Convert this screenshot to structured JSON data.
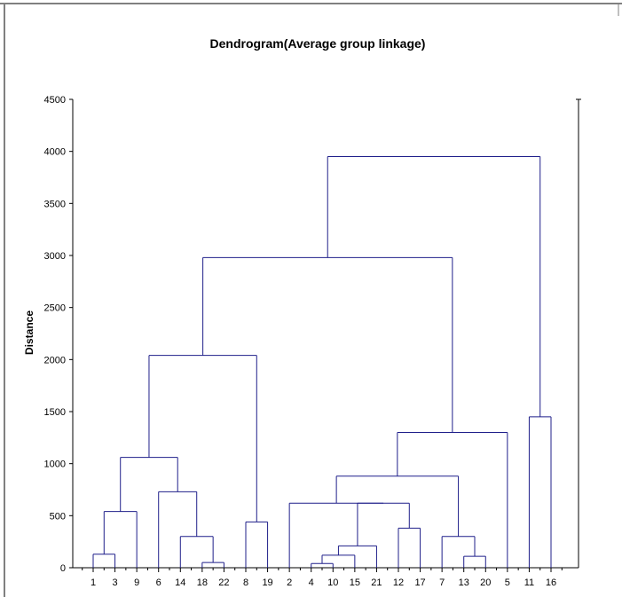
{
  "chart_data": {
    "type": "dendrogram",
    "title": "Dendrogram(Average group linkage)",
    "ylabel": "Distance",
    "xlabel": "",
    "ylim": [
      0,
      4500
    ],
    "yticks": [
      0,
      500,
      1000,
      1500,
      2000,
      2500,
      3000,
      3500,
      4000,
      4500
    ],
    "leaves": [
      "1",
      "3",
      "9",
      "6",
      "14",
      "18",
      "22",
      "8",
      "19",
      "2",
      "4",
      "10",
      "15",
      "21",
      "12",
      "17",
      "7",
      "13",
      "20",
      "5",
      "11",
      "16"
    ],
    "merges": [
      {
        "left": "22",
        "right": "18",
        "height": 50
      },
      {
        "left": "4",
        "right": "10",
        "height": 40
      },
      {
        "left": "1",
        "right": "3",
        "height": 130
      },
      {
        "left": "13",
        "right": "20",
        "height": 110
      },
      {
        "left": "(4,10)",
        "right": "15",
        "height": 120
      },
      {
        "left": "((4,10),15)",
        "right": "21",
        "height": 210
      },
      {
        "left": "14",
        "right": "(18,22)",
        "height": 300
      },
      {
        "left": "7",
        "right": "(13,20)",
        "height": 300
      },
      {
        "left": "12",
        "right": "17",
        "height": 380
      },
      {
        "left": "8",
        "right": "19",
        "height": 440
      },
      {
        "left": "(1,3)",
        "right": "9",
        "height": 540
      },
      {
        "left": "(((4,10),15),21)",
        "right": "(12,17)",
        "height": 620
      },
      {
        "left": "2",
        "right": "((((4,10),15),21),(12,17))",
        "height": 620
      },
      {
        "left": "6",
        "right": "(14,(18,22))",
        "height": 730
      },
      {
        "left": "(2,...)",
        "right": "(7,(13,20))",
        "height": 880
      },
      {
        "left": "((1,3),9)",
        "right": "(6,...)",
        "height": 1060
      },
      {
        "left": "(2,...,20)",
        "right": "5",
        "height": 1300
      },
      {
        "left": "11",
        "right": "16",
        "height": 1450
      },
      {
        "left": "(1,...,22)",
        "right": "(8,19)",
        "height": 2040
      },
      {
        "left": "(1,...,19)",
        "right": "(2,...,5)",
        "height": 2980
      },
      {
        "left": "(1,...,5)",
        "right": "(11,16)",
        "height": 3950
      }
    ]
  }
}
